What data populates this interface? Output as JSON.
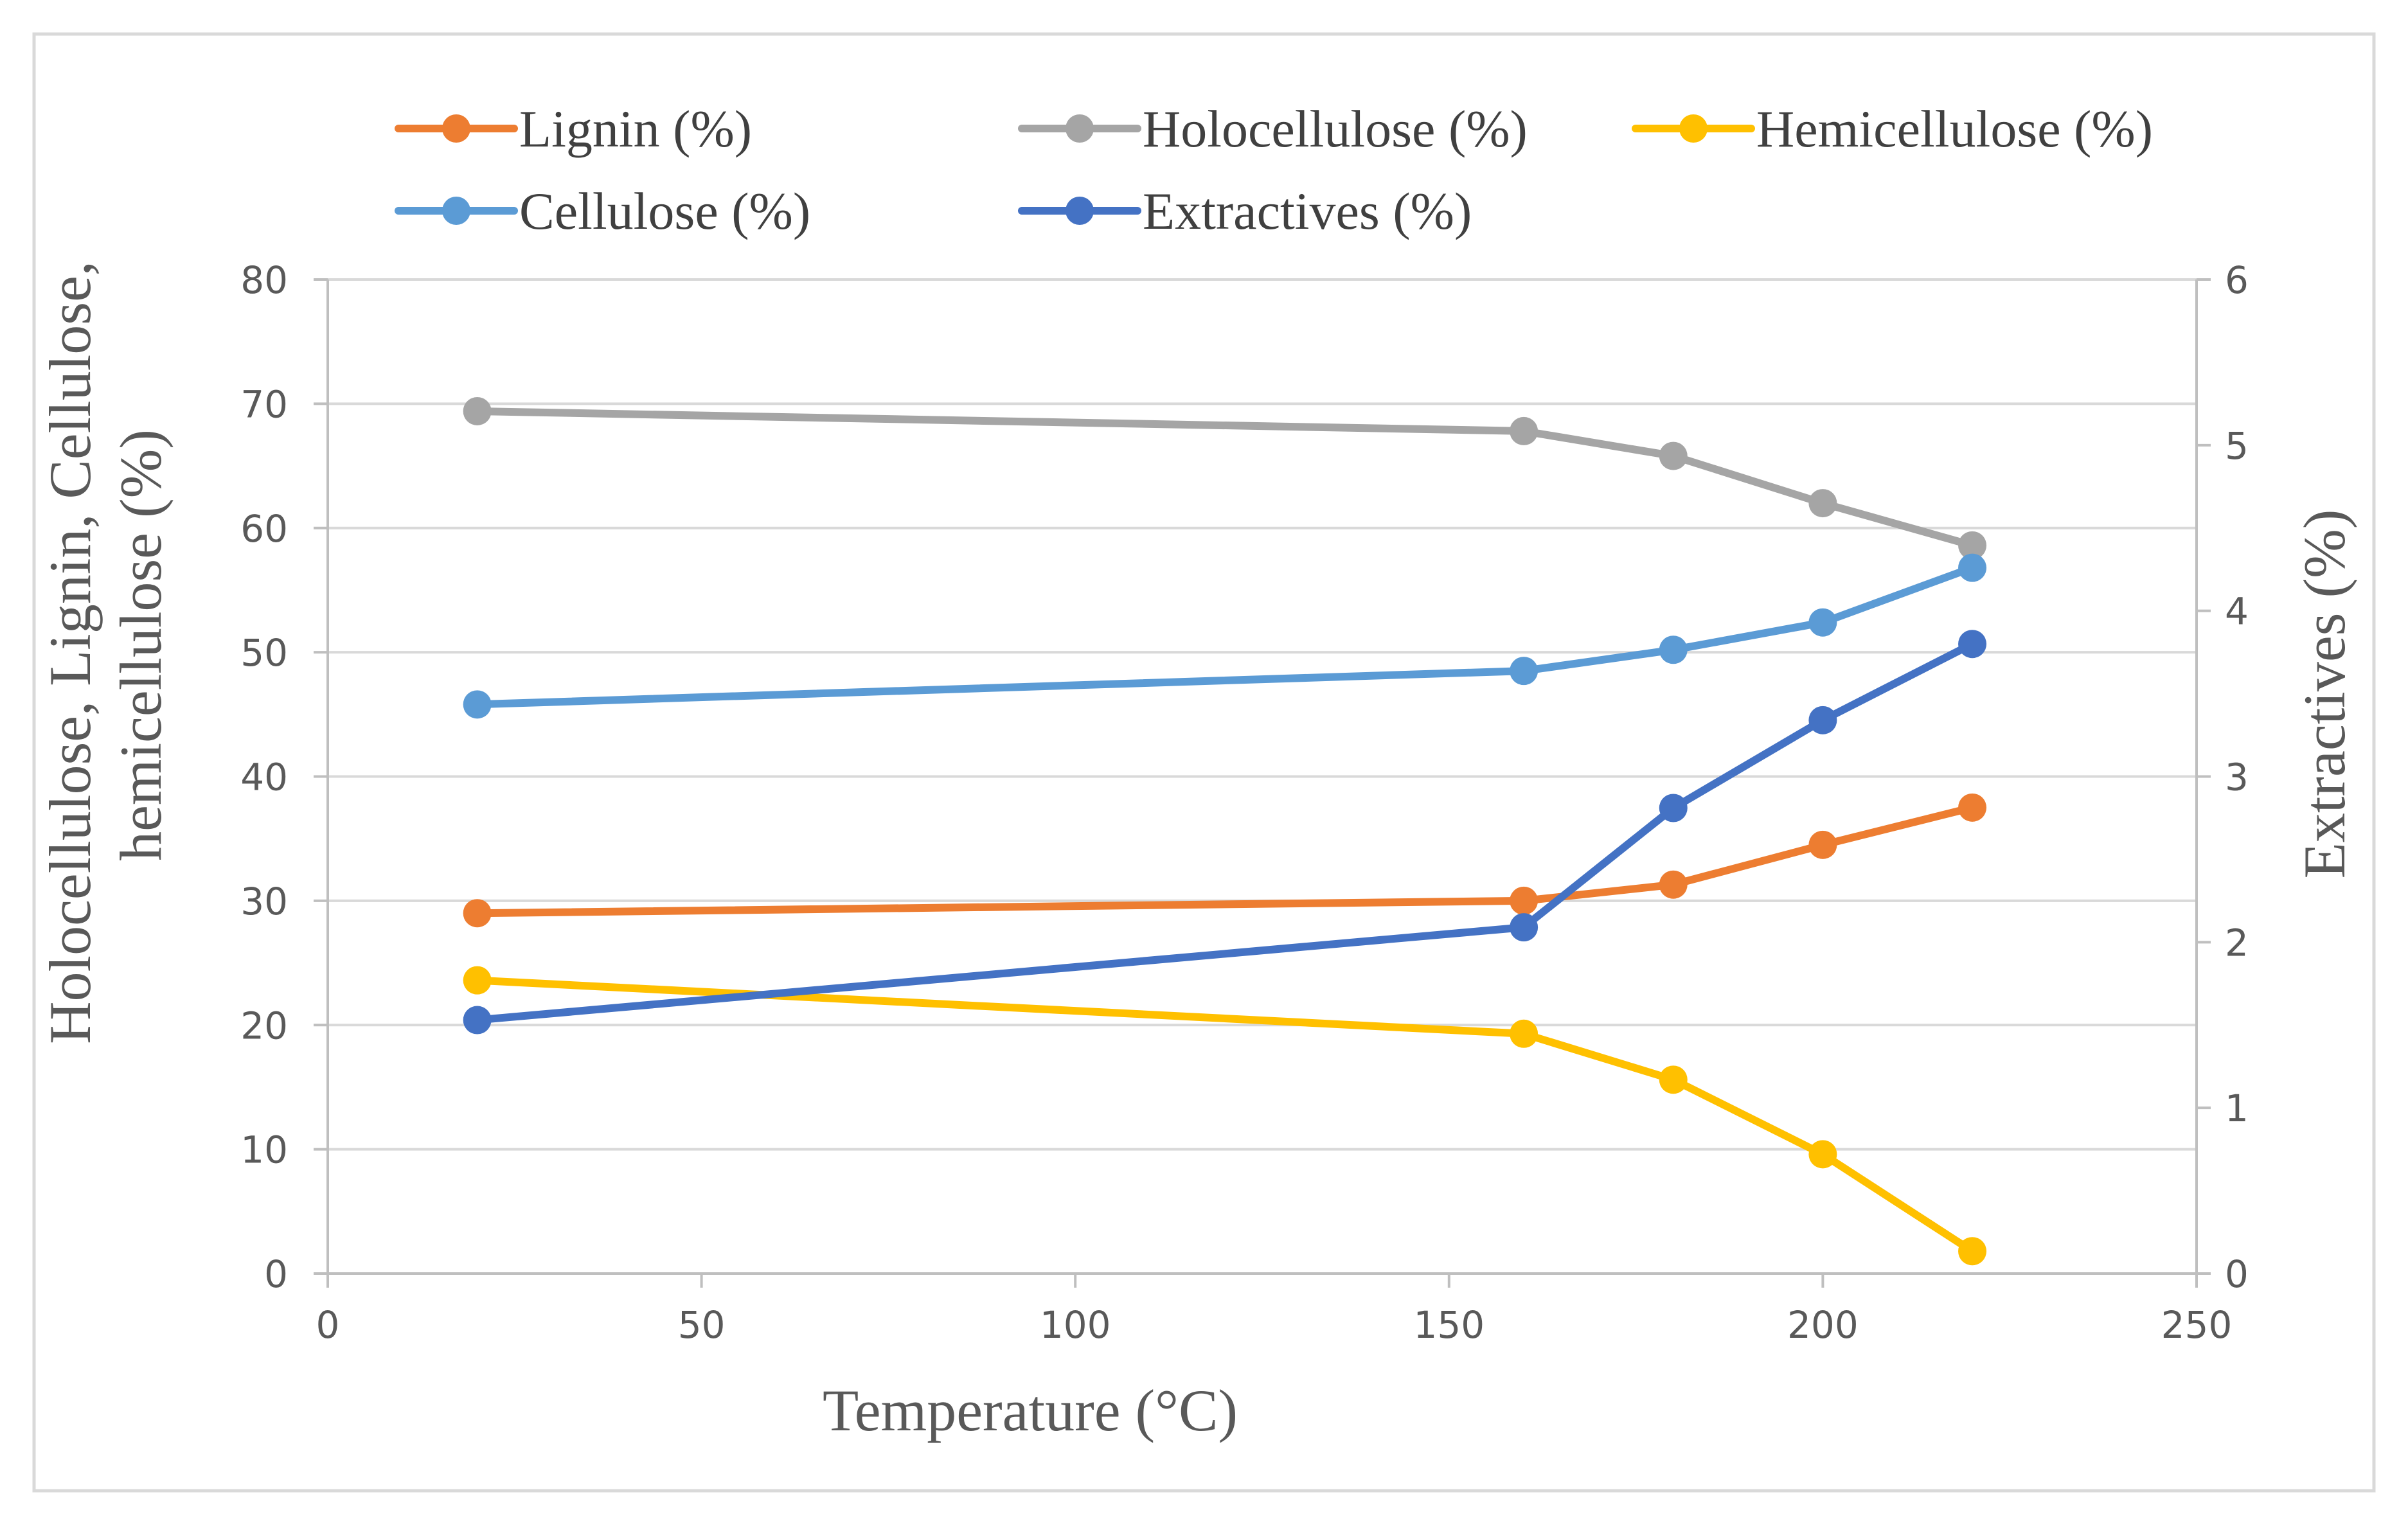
{
  "chart_data": {
    "type": "line",
    "xlabel": "Temperature (°C)",
    "ylabel_lines": [
      "Holocellulose, Lignin, Cellulose,",
      "hemicellulose (%)"
    ],
    "y2label": "Extractives (%)",
    "xlim": [
      0,
      250
    ],
    "ylim": [
      0,
      80
    ],
    "y2lim": [
      0,
      6
    ],
    "xticks": [
      "0",
      "50",
      "100",
      "150",
      "200",
      "250"
    ],
    "yticks": [
      "0",
      "10",
      "20",
      "30",
      "40",
      "50",
      "60",
      "70",
      "80"
    ],
    "y2ticks": [
      "0",
      "1",
      "2",
      "3",
      "4",
      "5",
      "6"
    ],
    "x": [
      20,
      160,
      180,
      200,
      220
    ],
    "series": [
      {
        "name": "Lignin (%)",
        "axis": "left",
        "color": "#ED7D31",
        "values": [
          29.0,
          30.0,
          31.3,
          34.5,
          37.5
        ]
      },
      {
        "name": "Holocellulose (%)",
        "axis": "left",
        "color": "#A5A5A5",
        "values": [
          69.4,
          67.8,
          65.8,
          62.0,
          58.6
        ]
      },
      {
        "name": "Hemicellulose (%)",
        "axis": "left",
        "color": "#FFC000",
        "values": [
          23.6,
          19.3,
          15.6,
          9.6,
          1.8
        ]
      },
      {
        "name": "Cellulose (%)",
        "axis": "left",
        "color": "#5B9BD5",
        "values": [
          45.8,
          48.5,
          50.2,
          52.4,
          56.8
        ]
      },
      {
        "name": "Extractives (%)",
        "axis": "right",
        "color": "#4472C4",
        "values": [
          1.53,
          2.09,
          2.81,
          3.34,
          3.8
        ]
      }
    ],
    "grid": true,
    "legend_position": "top"
  }
}
